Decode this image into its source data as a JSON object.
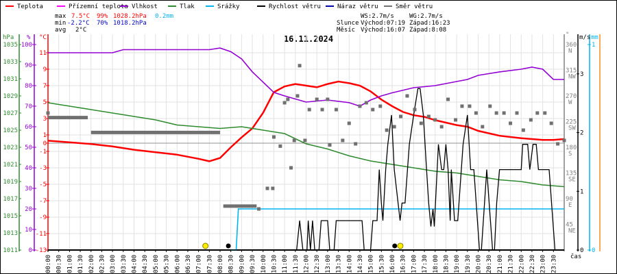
{
  "chart_data": {
    "type": "line",
    "title": "16.11.2024",
    "legend": [
      {
        "label": "Teplota",
        "color": "#ff0000"
      },
      {
        "label": "Přízemní teplota",
        "color": "#ff00ff"
      },
      {
        "label": "Vlhkost",
        "color": "#9400d3"
      },
      {
        "label": "Tlak",
        "color": "#2e8b2e"
      },
      {
        "label": "Srážky",
        "color": "#00b4f0"
      },
      {
        "label": "Rychlost větru",
        "color": "#000000"
      },
      {
        "label": "Náraz větru",
        "color": "#0000b0"
      },
      {
        "label": "Směr větru",
        "color": "#707070"
      }
    ],
    "legend_placement": "top",
    "stats": {
      "max": {
        "label": "max",
        "temp": "7.5°C",
        "hum": "99%",
        "press": "1028.2hPa",
        "rain": "0.2mm"
      },
      "min": {
        "label": "min",
        "temp": "-2.2°C",
        "hum": "70%",
        "press": "1018.2hPa"
      },
      "avg": {
        "label": "avg",
        "temp": "2°C"
      }
    },
    "wind_info": {
      "ws": "WS:2.7m/s",
      "wg": "WG:2.7m/s"
    },
    "sun": {
      "label": "Slunce",
      "rise": "Východ:07:19",
      "set": "Západ:16:23",
      "rise_h": 7.32,
      "set_h": 16.38
    },
    "moon": {
      "label": "Měsíc",
      "rise": "Východ:16:07",
      "set": "Západ:8:08",
      "rise_h": 16.12,
      "set_h": 8.13
    },
    "axes": {
      "hpa": {
        "label": "hPa",
        "range": [
          1011,
          1035
        ],
        "ticks": [
          "1035",
          "1033",
          "1031",
          "1029",
          "1027",
          "1025",
          "1023",
          "1021",
          "1019",
          "1017",
          "1015",
          "1013",
          "1011"
        ]
      },
      "pct": {
        "label": "%",
        "range": [
          0,
          100
        ],
        "ticks": [
          "100",
          "90",
          "80",
          "70",
          "60",
          "50",
          "40",
          "30",
          "20",
          "10",
          "0"
        ]
      },
      "temp": {
        "label": "°C",
        "range": [
          -13,
          11
        ],
        "ticks": [
          "11",
          "9",
          "7",
          "5",
          "3",
          "1",
          "0",
          "-1",
          "-3",
          "-5",
          "-7",
          "-9",
          "-11",
          "-13"
        ]
      },
      "dir": {
        "label": "°",
        "range": [
          0,
          360
        ],
        "ticks": [
          [
            "360",
            "N"
          ],
          [
            "315",
            "NW"
          ],
          [
            "270",
            "W"
          ],
          [
            "225",
            "SW"
          ],
          [
            "180",
            "S"
          ],
          [
            "135",
            "SE"
          ],
          [
            "90",
            "E"
          ],
          [
            "45",
            "NE"
          ]
        ]
      },
      "wind": {
        "label": "m/s",
        "range": [
          0,
          3.5
        ],
        "ticks": [
          "3",
          "2",
          "1",
          "0"
        ]
      },
      "rain": {
        "label": "mm",
        "range": [
          0,
          1
        ],
        "ticks": [
          "1",
          "0"
        ]
      },
      "x": {
        "label": "čas",
        "range": [
          0,
          24
        ],
        "ticks": [
          "00:00",
          "00:30",
          "01:00",
          "01:30",
          "02:00",
          "02:30",
          "03:00",
          "03:30",
          "04:00",
          "04:30",
          "05:00",
          "05:30",
          "06:00",
          "06:30",
          "07:00",
          "07:30",
          "08:00",
          "08:30",
          "09:00",
          "09:30",
          "10:00",
          "10:30",
          "11:00",
          "11:30",
          "12:00",
          "12:30",
          "13:00",
          "13:30",
          "14:00",
          "14:30",
          "15:00",
          "15:30",
          "16:00",
          "16:30",
          "17:00",
          "17:30",
          "18:00",
          "18:30",
          "19:00",
          "19:30",
          "20:00",
          "20:30",
          "21:00",
          "21:30",
          "22:00",
          "22:30",
          "23:00",
          "23:30"
        ]
      }
    },
    "series": [
      {
        "name": "Teplota",
        "axis": "temp",
        "color": "#ff0000",
        "x": [
          0,
          1,
          2,
          3,
          4,
          5,
          6,
          7,
          7.5,
          8,
          8.5,
          9,
          9.5,
          10,
          10.5,
          11,
          11.5,
          12,
          12.5,
          13,
          13.5,
          14,
          14.5,
          15,
          15.5,
          16,
          16.5,
          17,
          17.5,
          18,
          18.5,
          19,
          19.5,
          20,
          20.5,
          21,
          21.5,
          22,
          22.5,
          23,
          23.5,
          24
        ],
        "y": [
          0.3,
          0.1,
          -0.1,
          -0.4,
          -0.8,
          -1.1,
          -1.4,
          -1.9,
          -2.2,
          -1.8,
          -0.5,
          0.7,
          1.8,
          3.7,
          6.2,
          6.9,
          7.2,
          7.0,
          6.8,
          7.2,
          7.5,
          7.3,
          7.0,
          6.3,
          5.3,
          4.5,
          3.8,
          3.4,
          3.2,
          2.8,
          2.5,
          2.2,
          2.0,
          1.5,
          1.2,
          0.9,
          0.75,
          0.6,
          0.5,
          0.4,
          0.4,
          0.5
        ]
      },
      {
        "name": "Vlhkost",
        "axis": "pct",
        "color": "#9400d3",
        "x": [
          0,
          1,
          2,
          3,
          3.5,
          4,
          5,
          6,
          7,
          7.5,
          8,
          8.5,
          9,
          9.5,
          10,
          10.5,
          11,
          12,
          13,
          14,
          14.5,
          15,
          15.5,
          16,
          17,
          18,
          19,
          19.5,
          20,
          21,
          22,
          22.5,
          23,
          23.5,
          24
        ],
        "y": [
          96,
          96,
          96,
          96,
          97.5,
          97.5,
          97.5,
          97.5,
          97.5,
          97.5,
          98.3,
          96.5,
          93,
          86.7,
          81.7,
          76.7,
          75,
          72,
          73,
          71.7,
          70,
          73,
          75,
          76.5,
          79,
          80,
          82,
          83,
          85,
          86.7,
          88,
          89,
          88,
          83,
          83
        ]
      },
      {
        "name": "Tlak",
        "axis": "hpa",
        "color": "#2e8b2e",
        "x": [
          0,
          1,
          2,
          3,
          4,
          5,
          6,
          7,
          8,
          9,
          10,
          11,
          12,
          13,
          14,
          15,
          16,
          17,
          18,
          19,
          20,
          21,
          22,
          23,
          24
        ],
        "y": [
          1028.2,
          1027.8,
          1027.4,
          1027.0,
          1026.6,
          1026.2,
          1025.6,
          1025.4,
          1025.2,
          1025.4,
          1025.0,
          1024.6,
          1023.4,
          1022.8,
          1022.0,
          1021.4,
          1021.0,
          1020.6,
          1020.2,
          1020.0,
          1019.6,
          1019.2,
          1019.0,
          1018.6,
          1018.4
        ]
      },
      {
        "name": "Srážky",
        "axis": "rain",
        "color": "#00b4f0",
        "x": [
          8.5,
          8.75,
          8.85,
          24
        ],
        "y": [
          0,
          0,
          0.2,
          0.2
        ]
      },
      {
        "name": "Rychlost větru",
        "axis": "wind",
        "color": "#000000",
        "x": [
          0,
          11.15,
          11.56,
          11.7,
          11.85,
          12.04,
          12.1,
          12.2,
          12.3,
          12.4,
          12.6,
          12.7,
          13.0,
          13.1,
          13.3,
          13.4,
          14.6,
          14.7,
          15.0,
          15.1,
          15.3,
          15.4,
          15.5,
          15.57,
          15.7,
          15.8,
          15.97,
          16.1,
          16.37,
          16.46,
          16.6,
          16.8,
          17.0,
          17.2,
          17.3,
          17.45,
          17.6,
          17.7,
          17.8,
          17.9,
          17.96,
          18.15,
          18.3,
          18.4,
          18.5,
          18.6,
          18.7,
          18.75,
          18.9,
          19.05,
          19.3,
          19.5,
          19.65,
          19.8,
          20.06,
          20.15,
          20.4,
          20.67,
          20.76,
          20.86,
          20.99,
          22.0,
          22.07,
          22.3,
          22.4,
          22.55,
          22.7,
          22.8,
          23.3,
          23.47,
          23.57,
          24
        ],
        "y": [
          0,
          0,
          0,
          0.5,
          0,
          0,
          0.5,
          0,
          0.5,
          0,
          0,
          0.5,
          0.5,
          0,
          0,
          0.5,
          0.5,
          0,
          0,
          0.5,
          0.5,
          1.37,
          0.8,
          0.5,
          1.37,
          1.8,
          2.3,
          1.37,
          0.5,
          0.8,
          0.8,
          1.8,
          2.3,
          2.75,
          2.75,
          2.3,
          1.37,
          0.8,
          0.4,
          0.7,
          0.4,
          1.8,
          1.37,
          1.37,
          1.8,
          1.37,
          0.5,
          1.37,
          0.5,
          0.5,
          1.8,
          2.3,
          1.37,
          1.37,
          0,
          0,
          1.37,
          0,
          0,
          0.8,
          1.37,
          1.37,
          1.8,
          1.8,
          1.37,
          1.8,
          1.8,
          1.37,
          1.37,
          0.5,
          0,
          0
        ]
      },
      {
        "name": "Směr větru",
        "axis": "dir",
        "color": "#707070",
        "type": "scatter",
        "segments": [
          {
            "from": 0,
            "to": 1.85,
            "deg": 232
          },
          {
            "from": 2.0,
            "to": 8.0,
            "deg": 206
          },
          {
            "from": 8.15,
            "to": 9.7,
            "deg": 77
          }
        ],
        "x": [
          0,
          10.45,
          10.5,
          10.8,
          11.0,
          11.15,
          11.3,
          11.45,
          11.6,
          11.7,
          11.95,
          12.15,
          12.5,
          12.75,
          13.0,
          13.1,
          13.4,
          13.7,
          14.0,
          14.3,
          14.5,
          14.8,
          15.1,
          15.45,
          15.75,
          16.1,
          16.4,
          16.7,
          17.05,
          17.35,
          17.7,
          18.0,
          18.3,
          18.6,
          18.95,
          19.25,
          19.6,
          19.9,
          20.2,
          20.55,
          20.85,
          21.2,
          21.5,
          21.8,
          22.1,
          22.45,
          22.75,
          23.1,
          23.4,
          23.7,
          24.0,
          9.8,
          10.2
        ],
        "y": [
          240,
          108,
          198,
          182,
          258,
          264,
          144,
          192,
          270,
          323,
          192,
          246,
          264,
          246,
          264,
          184,
          246,
          192,
          222,
          186,
          252,
          258,
          246,
          252,
          210,
          216,
          234,
          270,
          246,
          222,
          234,
          228,
          216,
          264,
          228,
          252,
          252,
          240,
          216,
          252,
          240,
          240,
          222,
          240,
          210,
          228,
          240,
          240,
          222,
          186,
          192,
          72,
          108
        ]
      }
    ]
  }
}
